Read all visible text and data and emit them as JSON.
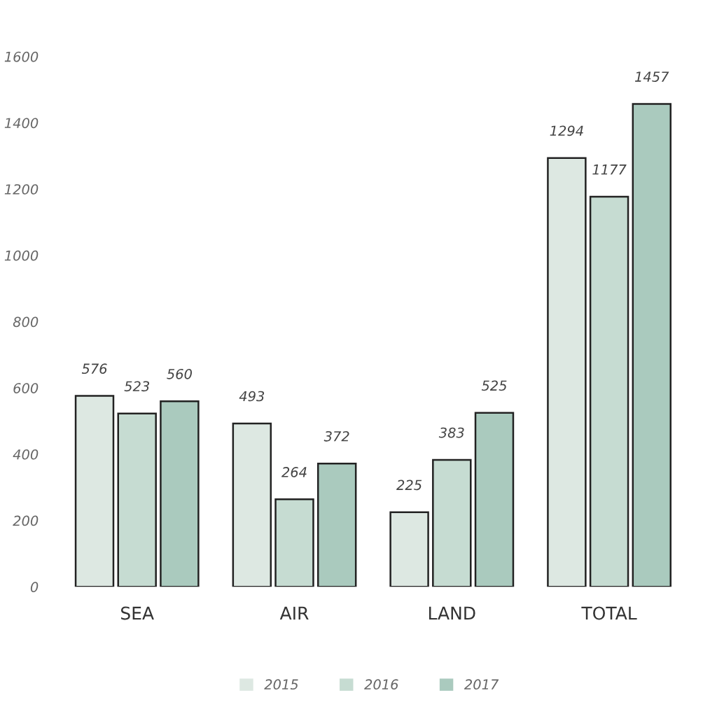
{
  "chart_data": {
    "type": "bar",
    "categories": [
      "SEA",
      "AIR",
      "LAND",
      "TOTAL"
    ],
    "series": [
      {
        "name": "2015",
        "color": "#dde8e2",
        "values": [
          576,
          493,
          225,
          1294
        ]
      },
      {
        "name": "2016",
        "color": "#c6dcd2",
        "values": [
          523,
          264,
          383,
          1177
        ]
      },
      {
        "name": "2017",
        "color": "#aacabe",
        "values": [
          560,
          372,
          525,
          1457
        ]
      }
    ],
    "ylim": [
      0,
      1600
    ],
    "yticks": [
      0,
      200,
      400,
      600,
      800,
      1000,
      1200,
      1400,
      1600
    ],
    "data_labels": true,
    "grid": false,
    "legend": "bottom"
  }
}
